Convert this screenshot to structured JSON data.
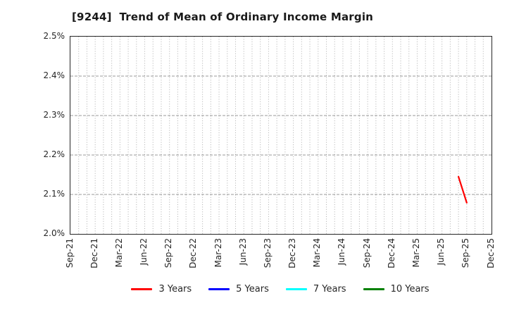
{
  "chart_data": {
    "type": "line",
    "title": "[9244]  Trend of Mean of Ordinary Income Margin",
    "x_axis": {
      "range_start": "Sep-21",
      "range_end": "Dec-25",
      "tick_labels": [
        "Sep-21",
        "Dec-21",
        "Mar-22",
        "Jun-22",
        "Sep-22",
        "Dec-22",
        "Mar-23",
        "Jun-23",
        "Sep-23",
        "Dec-23",
        "Mar-24",
        "Jun-24",
        "Sep-24",
        "Dec-24",
        "Mar-25",
        "Jun-25",
        "Sep-25",
        "Dec-25"
      ],
      "minor_grid": "monthly"
    },
    "y_axis": {
      "min": 2.0,
      "max": 2.5,
      "unit": "%",
      "ticks": [
        2.0,
        2.1,
        2.2,
        2.3,
        2.4,
        2.5
      ],
      "tick_labels": [
        "2.0%",
        "2.1%",
        "2.2%",
        "2.3%",
        "2.4%",
        "2.5%"
      ]
    },
    "series": [
      {
        "name": "3 Years",
        "color": "#ff0000",
        "points": [
          {
            "x": "Aug-25",
            "y": 2.145
          },
          {
            "x": "Sep-25",
            "y": 2.079
          }
        ]
      },
      {
        "name": "5 Years",
        "color": "#0000ff",
        "points": []
      },
      {
        "name": "7 Years",
        "color": "#00ffff",
        "points": []
      },
      {
        "name": "10 Years",
        "color": "#008000",
        "points": []
      }
    ],
    "legend": {
      "position": "bottom-center",
      "entries": [
        "3 Years",
        "5 Years",
        "7 Years",
        "10 Years"
      ]
    },
    "grid": {
      "horizontal_style": "dashed",
      "vertical_style": "dotted",
      "color": "#aaaaaa"
    },
    "frame_color": "#262626",
    "background_color": "#ffffff"
  }
}
